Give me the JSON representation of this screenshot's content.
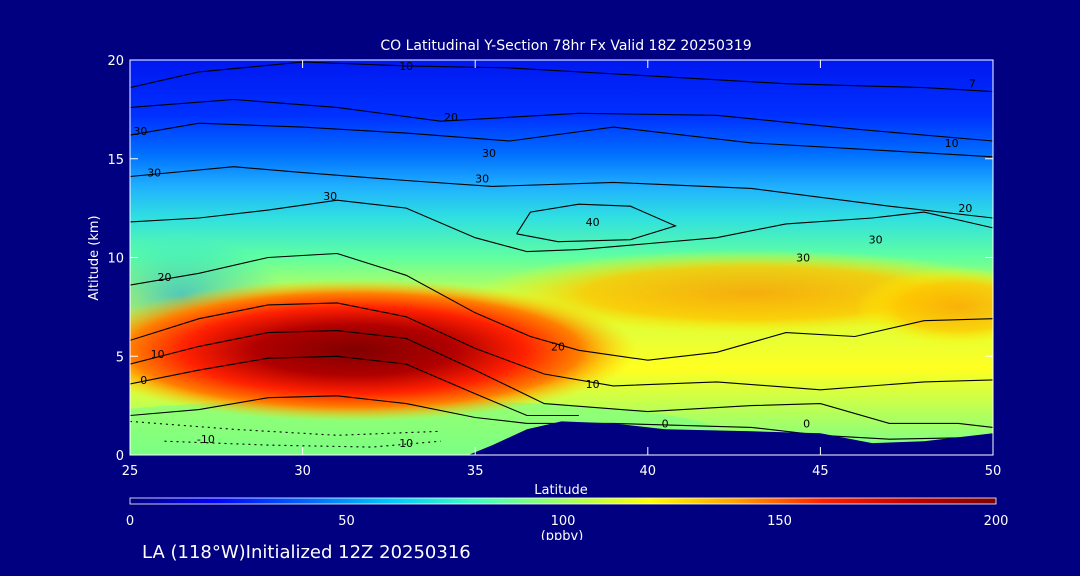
{
  "chart_data": {
    "type": "heatmap",
    "title": "CO Latitudinal Y-Section 78hr  Fx Valid 18Z 20250319",
    "xlabel": "Latitude",
    "ylabel": "Altitude (km)",
    "xlim": [
      25,
      50
    ],
    "ylim": [
      0,
      20
    ],
    "x_ticks": [
      25,
      30,
      35,
      40,
      45,
      50
    ],
    "y_ticks": [
      0,
      5,
      10,
      15,
      20
    ],
    "colorbar": {
      "min": 0,
      "max": 200,
      "ticks": [
        0,
        50,
        100,
        150,
        200
      ],
      "unit": "(ppbv)",
      "colors": [
        "#000080",
        "#0000ff",
        "#0064ff",
        "#00c8ff",
        "#40ffc0",
        "#a0ff60",
        "#ffff00",
        "#ffa000",
        "#ff2000",
        "#c00000",
        "#800000"
      ]
    },
    "contour_labels": [
      {
        "text": "10",
        "x": 33.0,
        "y": 19.5
      },
      {
        "text": "7",
        "x": 49.4,
        "y": 18.6
      },
      {
        "text": "20",
        "x": 34.3,
        "y": 16.9
      },
      {
        "text": "10",
        "x": 48.8,
        "y": 15.6
      },
      {
        "text": "30",
        "x": 25.3,
        "y": 16.2
      },
      {
        "text": "30",
        "x": 35.4,
        "y": 15.1
      },
      {
        "text": "30",
        "x": 25.7,
        "y": 14.1
      },
      {
        "text": "30",
        "x": 35.2,
        "y": 13.8
      },
      {
        "text": "30",
        "x": 30.8,
        "y": 12.9
      },
      {
        "text": "20",
        "x": 49.2,
        "y": 12.3
      },
      {
        "text": "40",
        "x": 38.4,
        "y": 11.6
      },
      {
        "text": "30",
        "x": 46.6,
        "y": 10.7
      },
      {
        "text": "30",
        "x": 44.5,
        "y": 9.8
      },
      {
        "text": "20",
        "x": 26.0,
        "y": 8.8
      },
      {
        "text": "10",
        "x": 25.8,
        "y": 4.9
      },
      {
        "text": "20",
        "x": 37.4,
        "y": 5.3
      },
      {
        "text": "0",
        "x": 25.4,
        "y": 3.6
      },
      {
        "text": "10",
        "x": 38.4,
        "y": 3.4
      },
      {
        "text": "0",
        "x": 40.5,
        "y": 1.4
      },
      {
        "text": "0",
        "x": 44.6,
        "y": 1.4
      },
      {
        "text": "-10",
        "x": 27.2,
        "y": 0.6
      },
      {
        "text": "10",
        "x": 33.0,
        "y": 0.4
      }
    ]
  },
  "footer": {
    "text": "LA (118°W)Initialized 12Z 20250316"
  }
}
